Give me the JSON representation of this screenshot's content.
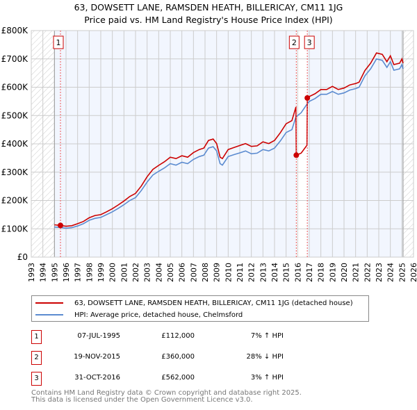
{
  "chart_data": {
    "type": "line",
    "title": "63, DOWSETT LANE, RAMSDEN HEATH, BILLERICAY, CM11 1JG",
    "subtitle": "Price paid vs. HM Land Registry's House Price Index (HPI)",
    "xlabel": "",
    "ylabel": "",
    "value_unit": "GBP thousands",
    "xlim": [
      1993,
      2026
    ],
    "ylim": [
      0,
      800
    ],
    "x_ticks": [
      "1993",
      "1994",
      "1995",
      "1996",
      "1997",
      "1998",
      "1999",
      "2000",
      "2001",
      "2002",
      "2003",
      "2004",
      "2005",
      "2006",
      "2007",
      "2008",
      "2009",
      "2010",
      "2011",
      "2012",
      "2013",
      "2014",
      "2015",
      "2016",
      "2017",
      "2018",
      "2019",
      "2020",
      "2021",
      "2022",
      "2023",
      "2024",
      "2025",
      "2026"
    ],
    "y_ticks": [
      {
        "v": 0,
        "label": "£0"
      },
      {
        "v": 100,
        "label": "£100K"
      },
      {
        "v": 200,
        "label": "£200K"
      },
      {
        "v": 300,
        "label": "£300K"
      },
      {
        "v": 400,
        "label": "£400K"
      },
      {
        "v": 500,
        "label": "£500K"
      },
      {
        "v": 600,
        "label": "£600K"
      },
      {
        "v": 700,
        "label": "£700K"
      },
      {
        "v": 800,
        "label": "£800K"
      }
    ],
    "grid": true,
    "data_range": [
      1995.0,
      2025.1
    ],
    "series": [
      {
        "name": "63, DOWSETT LANE, RAMSDEN HEATH, BILLERICAY, CM11 1JG (detached house)",
        "color": "#cc0000",
        "x": [
          1995.0,
          1995.52,
          1996.0,
          1996.5,
          1997.0,
          1997.5,
          1998.0,
          1998.5,
          1999.0,
          1999.5,
          2000.0,
          2000.5,
          2001.0,
          2001.5,
          2002.0,
          2002.5,
          2003.0,
          2003.5,
          2004.0,
          2004.5,
          2005.0,
          2005.5,
          2006.0,
          2006.5,
          2007.0,
          2007.5,
          2007.9,
          2008.3,
          2008.7,
          2009.0,
          2009.3,
          2009.5,
          2010.0,
          2010.5,
          2011.0,
          2011.5,
          2012.0,
          2012.5,
          2013.0,
          2013.5,
          2014.0,
          2014.5,
          2015.0,
          2015.5,
          2015.85,
          2015.88,
          2016.3,
          2016.8,
          2016.83,
          2017.0,
          2017.5,
          2018.0,
          2018.5,
          2019.0,
          2019.5,
          2020.0,
          2020.5,
          2021.0,
          2021.3,
          2021.8,
          2022.3,
          2022.8,
          2023.3,
          2023.7,
          2024.0,
          2024.3,
          2024.8,
          2025.0,
          2025.1
        ],
        "values": [
          114,
          112,
          109,
          111,
          118,
          126,
          139,
          147,
          150,
          160,
          171,
          184,
          198,
          214,
          225,
          251,
          284,
          310,
          324,
          337,
          353,
          348,
          358,
          353,
          369,
          380,
          385,
          412,
          417,
          401,
          353,
          348,
          380,
          387,
          394,
          401,
          391,
          393,
          407,
          401,
          412,
          439,
          471,
          482,
          530,
          360,
          367,
          395,
          562,
          567,
          577,
          592,
          592,
          603,
          592,
          597,
          608,
          613,
          618,
          659,
          685,
          721,
          716,
          690,
          711,
          680,
          685,
          700,
          685
        ]
      },
      {
        "name": "HPI: Average price, detached house, Chelmsford",
        "color": "#5b8bd0",
        "x": [
          1995.0,
          1995.5,
          1996.0,
          1996.5,
          1997.0,
          1997.5,
          1998.0,
          1998.5,
          1999.0,
          1999.5,
          2000.0,
          2000.5,
          2001.0,
          2001.5,
          2002.0,
          2002.5,
          2003.0,
          2003.5,
          2004.0,
          2004.5,
          2005.0,
          2005.5,
          2006.0,
          2006.5,
          2007.0,
          2007.5,
          2007.9,
          2008.3,
          2008.7,
          2009.0,
          2009.3,
          2009.5,
          2010.0,
          2010.5,
          2011.0,
          2011.5,
          2012.0,
          2012.5,
          2013.0,
          2013.5,
          2014.0,
          2014.5,
          2015.0,
          2015.5,
          2015.85,
          2016.3,
          2016.8,
          2017.0,
          2017.5,
          2018.0,
          2018.5,
          2019.0,
          2019.5,
          2020.0,
          2020.5,
          2021.0,
          2021.3,
          2021.8,
          2022.3,
          2022.8,
          2023.3,
          2023.7,
          2024.0,
          2024.3,
          2024.8,
          2025.0,
          2025.1
        ],
        "values": [
          106,
          105,
          102,
          104,
          110,
          118,
          130,
          137,
          140,
          150,
          160,
          172,
          185,
          200,
          210,
          235,
          265,
          290,
          303,
          315,
          330,
          325,
          335,
          330,
          345,
          355,
          360,
          385,
          390,
          375,
          330,
          325,
          355,
          362,
          368,
          375,
          365,
          367,
          380,
          375,
          385,
          410,
          440,
          450,
          495,
          510,
          540,
          550,
          560,
          575,
          575,
          585,
          575,
          580,
          590,
          595,
          600,
          640,
          665,
          700,
          695,
          670,
          690,
          660,
          665,
          680,
          665
        ]
      }
    ],
    "sales": [
      {
        "label": "1",
        "x": 1995.52,
        "value": 112
      },
      {
        "label": "2",
        "x": 2015.88,
        "value": 360
      },
      {
        "label": "3",
        "x": 2016.83,
        "value": 562
      }
    ],
    "legend_placement": "below"
  },
  "legend": {
    "property": "63, DOWSETT LANE, RAMSDEN HEATH, BILLERICAY, CM11 1JG (detached house)",
    "hpi": "HPI: Average price, detached house, Chelmsford"
  },
  "transactions": [
    {
      "num": "1",
      "date": "07-JUL-1995",
      "price": "£112,000",
      "hpi": "7% ↑ HPI"
    },
    {
      "num": "2",
      "date": "19-NOV-2015",
      "price": "£360,000",
      "hpi": "28% ↓ HPI"
    },
    {
      "num": "3",
      "date": "31-OCT-2016",
      "price": "£562,000",
      "hpi": "3% ↑ HPI"
    }
  ],
  "footer": {
    "line1": "Contains HM Land Registry data © Crown copyright and database right 2025.",
    "line2": "This data is licensed under the Open Government Licence v3.0."
  }
}
